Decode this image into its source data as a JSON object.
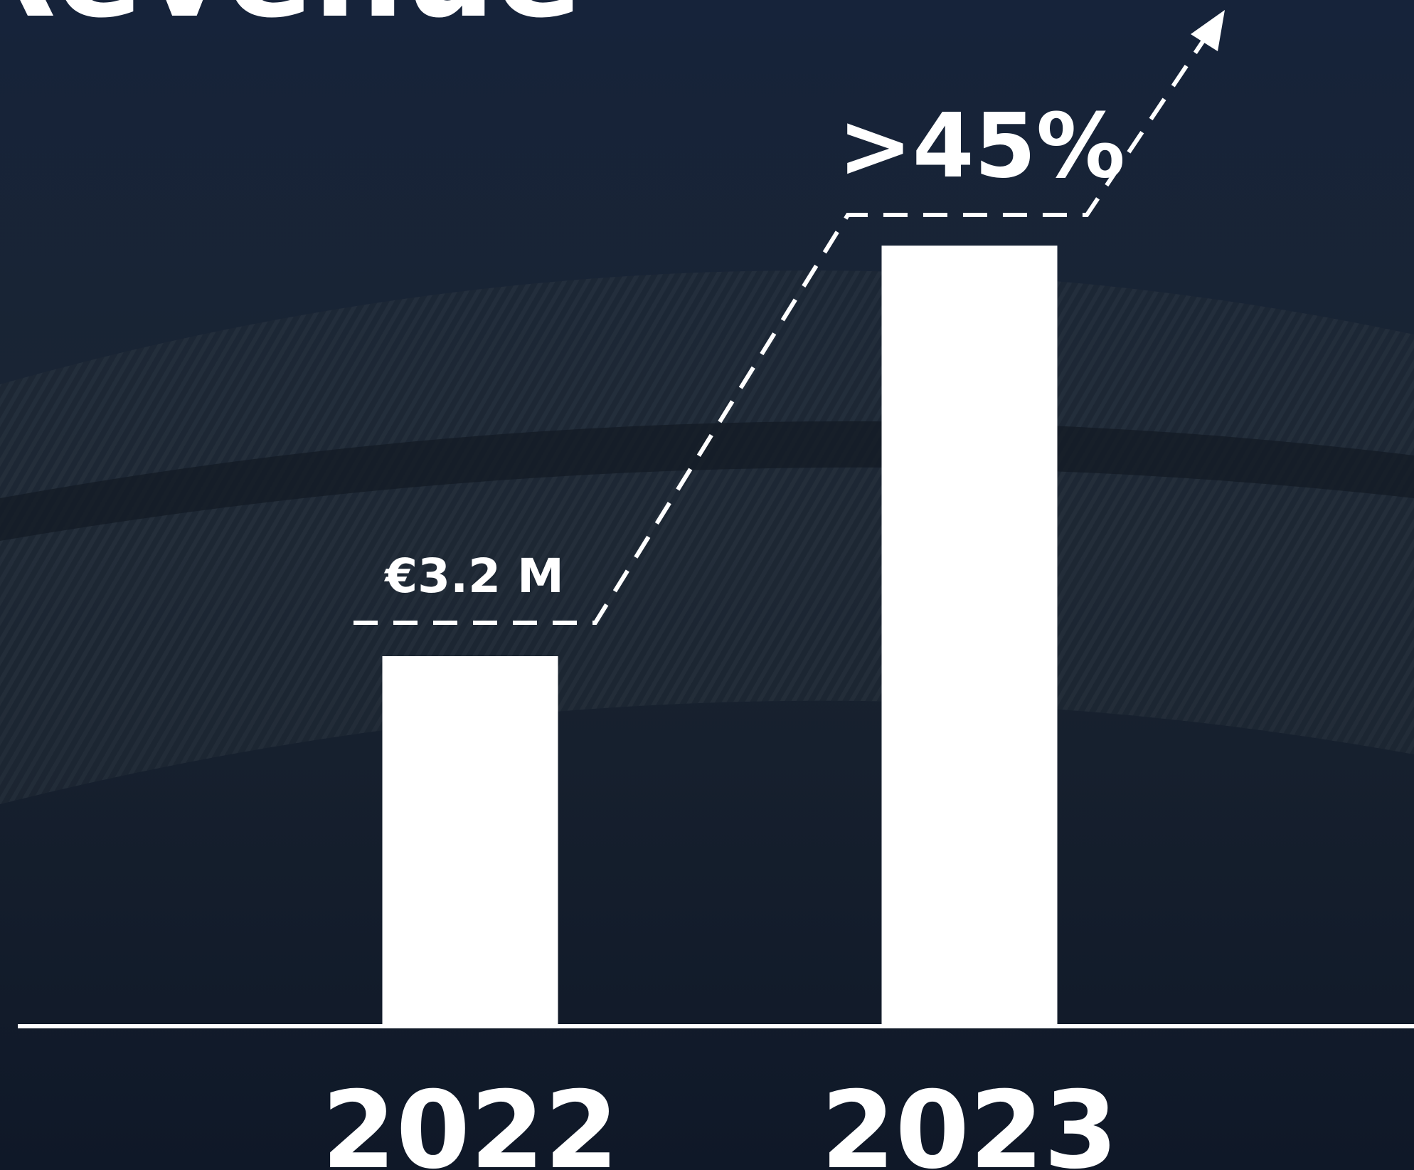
{
  "chart_data": {
    "type": "bar",
    "title": "Revenue",
    "categories": [
      "2022",
      "2023"
    ],
    "values": [
      3.2,
      6.75
    ],
    "value_labels": [
      "€3.2 M",
      null
    ],
    "annotations": [
      ">45%"
    ],
    "color": "#ffffff"
  }
}
